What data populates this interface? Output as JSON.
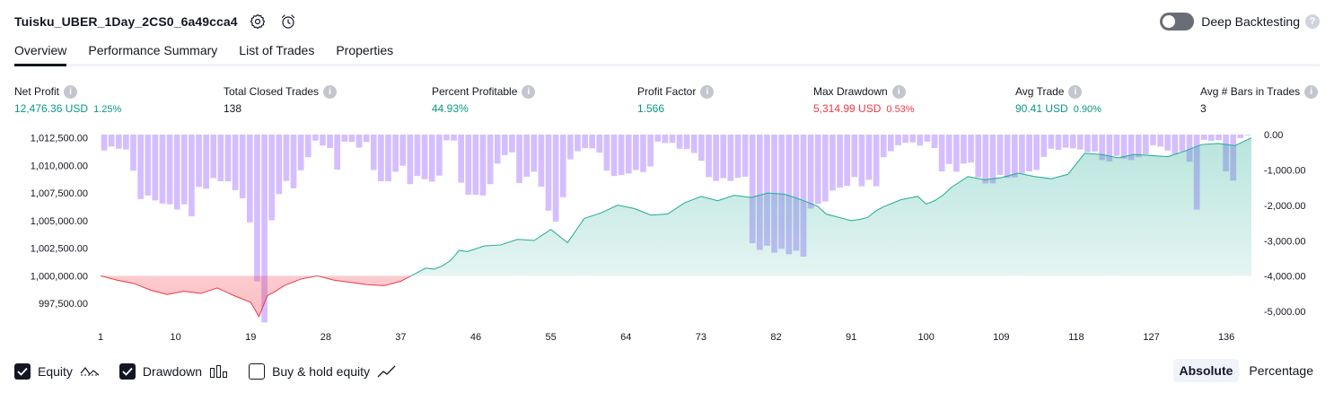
{
  "header": {
    "title": "Tuisku_UBER_1Day_2CS0_6a49cca4",
    "settings_icon": "gear-icon",
    "alert_icon": "alarm-clock-icon"
  },
  "deep_backtesting": {
    "label": "Deep Backtesting",
    "enabled": false,
    "help_icon": "question-icon"
  },
  "tabs": [
    {
      "label": "Overview",
      "active": true
    },
    {
      "label": "Performance Summary",
      "active": false
    },
    {
      "label": "List of Trades",
      "active": false
    },
    {
      "label": "Properties",
      "active": false
    }
  ],
  "metrics": {
    "net_profit": {
      "label": "Net Profit",
      "value": "12,476.36 USD",
      "pct": "1.25%"
    },
    "total_closed_trades": {
      "label": "Total Closed Trades",
      "value": "138"
    },
    "percent_profitable": {
      "label": "Percent Profitable",
      "value": "44.93%"
    },
    "profit_factor": {
      "label": "Profit Factor",
      "value": "1.566"
    },
    "max_drawdown": {
      "label": "Max Drawdown",
      "value": "5,314.99 USD",
      "pct": "0.53%"
    },
    "avg_trade": {
      "label": "Avg Trade",
      "value": "90.41 USD",
      "pct": "0.90%"
    },
    "avg_bars": {
      "label": "Avg # Bars in Trades",
      "value": "3"
    }
  },
  "chart_data": {
    "type": "area",
    "equity": {
      "baseline": 1000000,
      "ylim": [
        995800,
        1012800
      ],
      "ticks": [
        "1,012,500.00",
        "1,010,000.00",
        "1,007,500.00",
        "1,005,000.00",
        "1,002,500.00",
        "1,000,000.00",
        "997,500.00"
      ],
      "tick_values": [
        1012500,
        1010000,
        1007500,
        1005000,
        1002500,
        1000000,
        997500
      ],
      "x": [
        1,
        3,
        5,
        7,
        9,
        11,
        13,
        15,
        17,
        19,
        20,
        21,
        22,
        23,
        25,
        27,
        29,
        31,
        33,
        35,
        37,
        38,
        39,
        40,
        41,
        42,
        43,
        44,
        45,
        47,
        49,
        51,
        53,
        55,
        57,
        59,
        61,
        63,
        65,
        67,
        69,
        71,
        73,
        75,
        77,
        79,
        81,
        83,
        85,
        87,
        88,
        89,
        90,
        91,
        92,
        93,
        94,
        95,
        97,
        99,
        100,
        101,
        102,
        103,
        105,
        107,
        109,
        111,
        113,
        115,
        117,
        119,
        121,
        123,
        125,
        127,
        129,
        131,
        133,
        135,
        137,
        139
      ],
      "values": [
        1000000,
        999600,
        999300,
        998700,
        998300,
        998600,
        998400,
        998900,
        998200,
        997600,
        996300,
        998200,
        998600,
        999100,
        999700,
        1000000,
        999600,
        999400,
        999200,
        999100,
        999500,
        999900,
        1000300,
        1000700,
        1000600,
        1000900,
        1001400,
        1002300,
        1002200,
        1002700,
        1002800,
        1003300,
        1003200,
        1004200,
        1003000,
        1005200,
        1005700,
        1006400,
        1006100,
        1005500,
        1005600,
        1006600,
        1007200,
        1006800,
        1007300,
        1007100,
        1007500,
        1007400,
        1006900,
        1006300,
        1005600,
        1005400,
        1005200,
        1005000,
        1005100,
        1005300,
        1005900,
        1006300,
        1006900,
        1007200,
        1006500,
        1006800,
        1007300,
        1008000,
        1009000,
        1008700,
        1008900,
        1009300,
        1009000,
        1008800,
        1009200,
        1011100,
        1011000,
        1010700,
        1011000,
        1010900,
        1010800,
        1011300,
        1011900,
        1012000,
        1011800,
        1012500
      ]
    },
    "drawdown": {
      "ylim": [
        -5300,
        0
      ],
      "ticks": [
        "0.00",
        "-1,000.00",
        "-2,000.00",
        "-3,000.00",
        "-4,000.00",
        "-5,000.00"
      ],
      "tick_values": [
        0,
        -1000,
        -2000,
        -3000,
        -4000,
        -5000
      ],
      "values": [
        -450,
        -340,
        -400,
        -420,
        -1020,
        -1820,
        -1720,
        -1860,
        -1950,
        -1970,
        -2120,
        -1970,
        -2310,
        -1480,
        -1530,
        -1230,
        -1320,
        -1320,
        -1570,
        -1800,
        -2480,
        -4150,
        -5310,
        -2420,
        -1680,
        -1310,
        -1520,
        -1010,
        -640,
        -170,
        -310,
        -380,
        -990,
        -200,
        -210,
        -370,
        -210,
        -1000,
        -1320,
        -1320,
        -1050,
        -880,
        -1400,
        -1170,
        -1260,
        -1330,
        -1160,
        -160,
        -170,
        -1360,
        -1700,
        -1700,
        -1720,
        -1400,
        -820,
        -580,
        -500,
        -1370,
        -1190,
        -1050,
        -1470,
        -2150,
        -2460,
        -1770,
        -700,
        -470,
        -380,
        -390,
        -510,
        -1020,
        -1170,
        -1140,
        -1100,
        -1000,
        -1060,
        -900,
        -200,
        -240,
        -230,
        -400,
        -410,
        -520,
        -740,
        -1200,
        -1310,
        -1230,
        -1310,
        -1220,
        -1190,
        -3070,
        -3260,
        -3140,
        -3340,
        -3230,
        -3380,
        -3280,
        -3450,
        -2090,
        -1960,
        -1890,
        -1580,
        -1500,
        -1450,
        -1200,
        -1460,
        -1280,
        -1460,
        -640,
        -470,
        -300,
        -230,
        -220,
        -310,
        -200,
        -380,
        -1040,
        -830,
        -1050,
        -820,
        -790,
        -1210,
        -1380,
        -1380,
        -1140,
        -1220,
        -1210,
        -1100,
        -1040,
        -1000,
        -630,
        -400,
        -430,
        -370,
        -390,
        -420,
        -500,
        -480,
        -720,
        -760,
        -600,
        -680,
        -720,
        -640,
        -560,
        -300,
        -340,
        -450,
        -560,
        -480,
        -770,
        -2120,
        -150,
        -180,
        -160,
        -1040,
        -1300,
        -100,
        -20
      ]
    },
    "xlabels": [
      "1",
      "10",
      "19",
      "28",
      "37",
      "46",
      "55",
      "64",
      "73",
      "82",
      "91",
      "100",
      "109",
      "118",
      "127",
      "136"
    ],
    "xlabel_values": [
      1,
      10,
      19,
      28,
      37,
      46,
      55,
      64,
      73,
      82,
      91,
      100,
      109,
      118,
      127,
      136
    ],
    "xlim": [
      1,
      139
    ],
    "colors": {
      "equity_up_line": "#22ab94",
      "equity_down_line": "#f23645",
      "equity_up_fill": "#22ab94",
      "equity_down_fill": "#f23645",
      "drawdown_bar": "#b388ff"
    }
  },
  "legend": [
    {
      "label": "Equity",
      "checked": true,
      "glyph": "equity-line-icon"
    },
    {
      "label": "Drawdown",
      "checked": true,
      "glyph": "bars-icon"
    },
    {
      "label": "Buy & hold equity",
      "checked": false,
      "glyph": "trend-line-icon"
    }
  ],
  "modes": [
    {
      "label": "Absolute",
      "active": true
    },
    {
      "label": "Percentage",
      "active": false
    }
  ]
}
